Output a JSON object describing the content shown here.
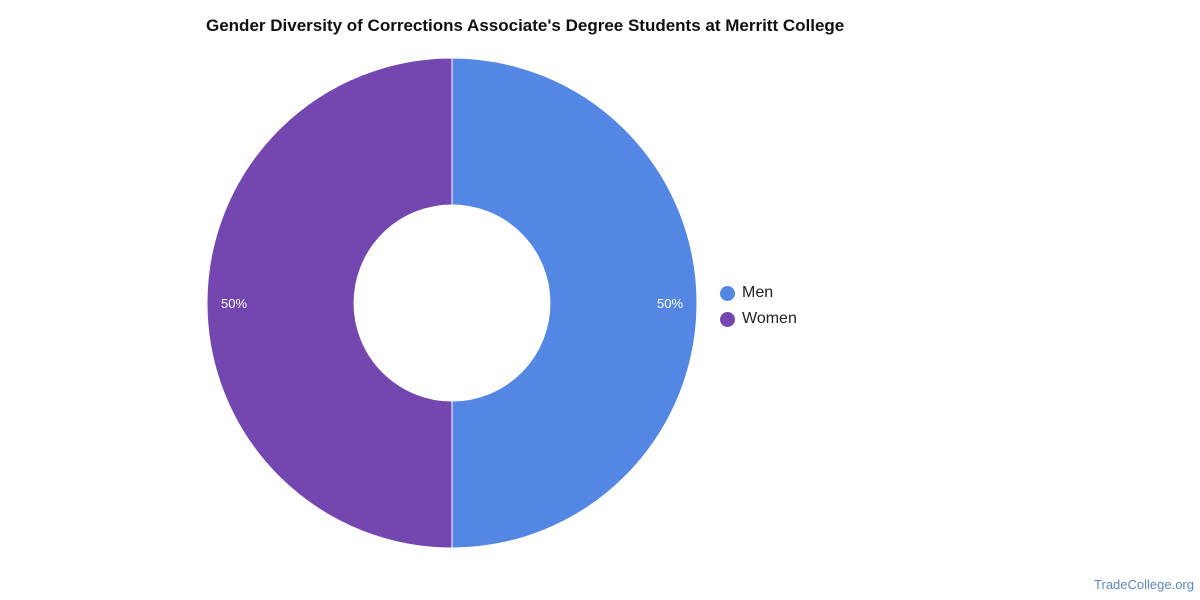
{
  "chart_data": {
    "type": "pie",
    "title": "Gender Diversity of Corrections Associate's Degree Students at Merritt College",
    "hole": true,
    "legend_position": "right",
    "slices": [
      {
        "name": "Men",
        "value": 50,
        "label": "50%",
        "color": "#5387e3"
      },
      {
        "name": "Women",
        "value": 50,
        "label": "50%",
        "color": "#7447b0"
      }
    ]
  },
  "footer": {
    "credit": "TradeCollege.org"
  }
}
